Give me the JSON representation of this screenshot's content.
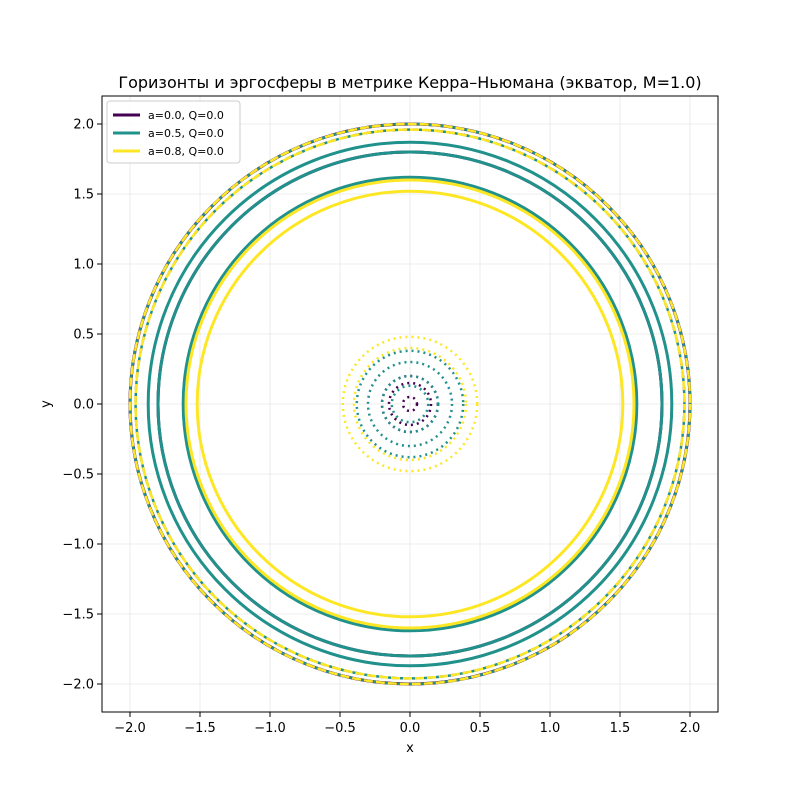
{
  "chart_data": {
    "type": "line",
    "title": "Горизонты и эргосферы в метрике Керра–Ньюмана (экватор, M=1.0)",
    "xlabel": "x",
    "ylabel": "y",
    "xlim": [
      -2.2,
      2.2
    ],
    "ylim": [
      -2.2,
      2.2
    ],
    "xticks": [
      -2.0,
      -1.5,
      -1.0,
      -0.5,
      0.0,
      0.5,
      1.0,
      1.5,
      2.0
    ],
    "yticks": [
      -2.0,
      -1.5,
      -1.0,
      -0.5,
      0.0,
      0.5,
      1.0,
      1.5,
      2.0
    ],
    "xtick_labels": [
      "−2.0",
      "−1.5",
      "−1.0",
      "−0.5",
      "0.0",
      "0.5",
      "1.0",
      "1.5",
      "2.0"
    ],
    "ytick_labels": [
      "−2.0",
      "−1.5",
      "−1.0",
      "−0.5",
      "0.0",
      "0.5",
      "1.0",
      "1.5",
      "2.0"
    ],
    "grid": true,
    "legend_position": "top-left",
    "series": [
      {
        "name": "a=0.0, Q=0.0",
        "color": "#440154",
        "solid_radii": [
          2.0,
          1.8
        ],
        "dashed_radii": [
          2.0,
          1.96
        ],
        "dotted_radii": [
          0.2,
          0.15,
          0.05
        ]
      },
      {
        "name": "a=0.5, Q=0.0",
        "color": "#21918c",
        "solid_radii": [
          1.87,
          1.62,
          1.8
        ],
        "dashed_radii": [
          2.0,
          1.96
        ],
        "dotted_radii": [
          0.38,
          0.3,
          0.2,
          0.13
        ]
      },
      {
        "name": "a=0.8, Q=0.0",
        "color": "#fde725",
        "solid_radii": [
          1.6,
          1.52
        ],
        "dashed_radii": [
          2.0,
          1.96
        ],
        "dotted_radii": [
          0.48,
          0.4
        ]
      }
    ]
  }
}
